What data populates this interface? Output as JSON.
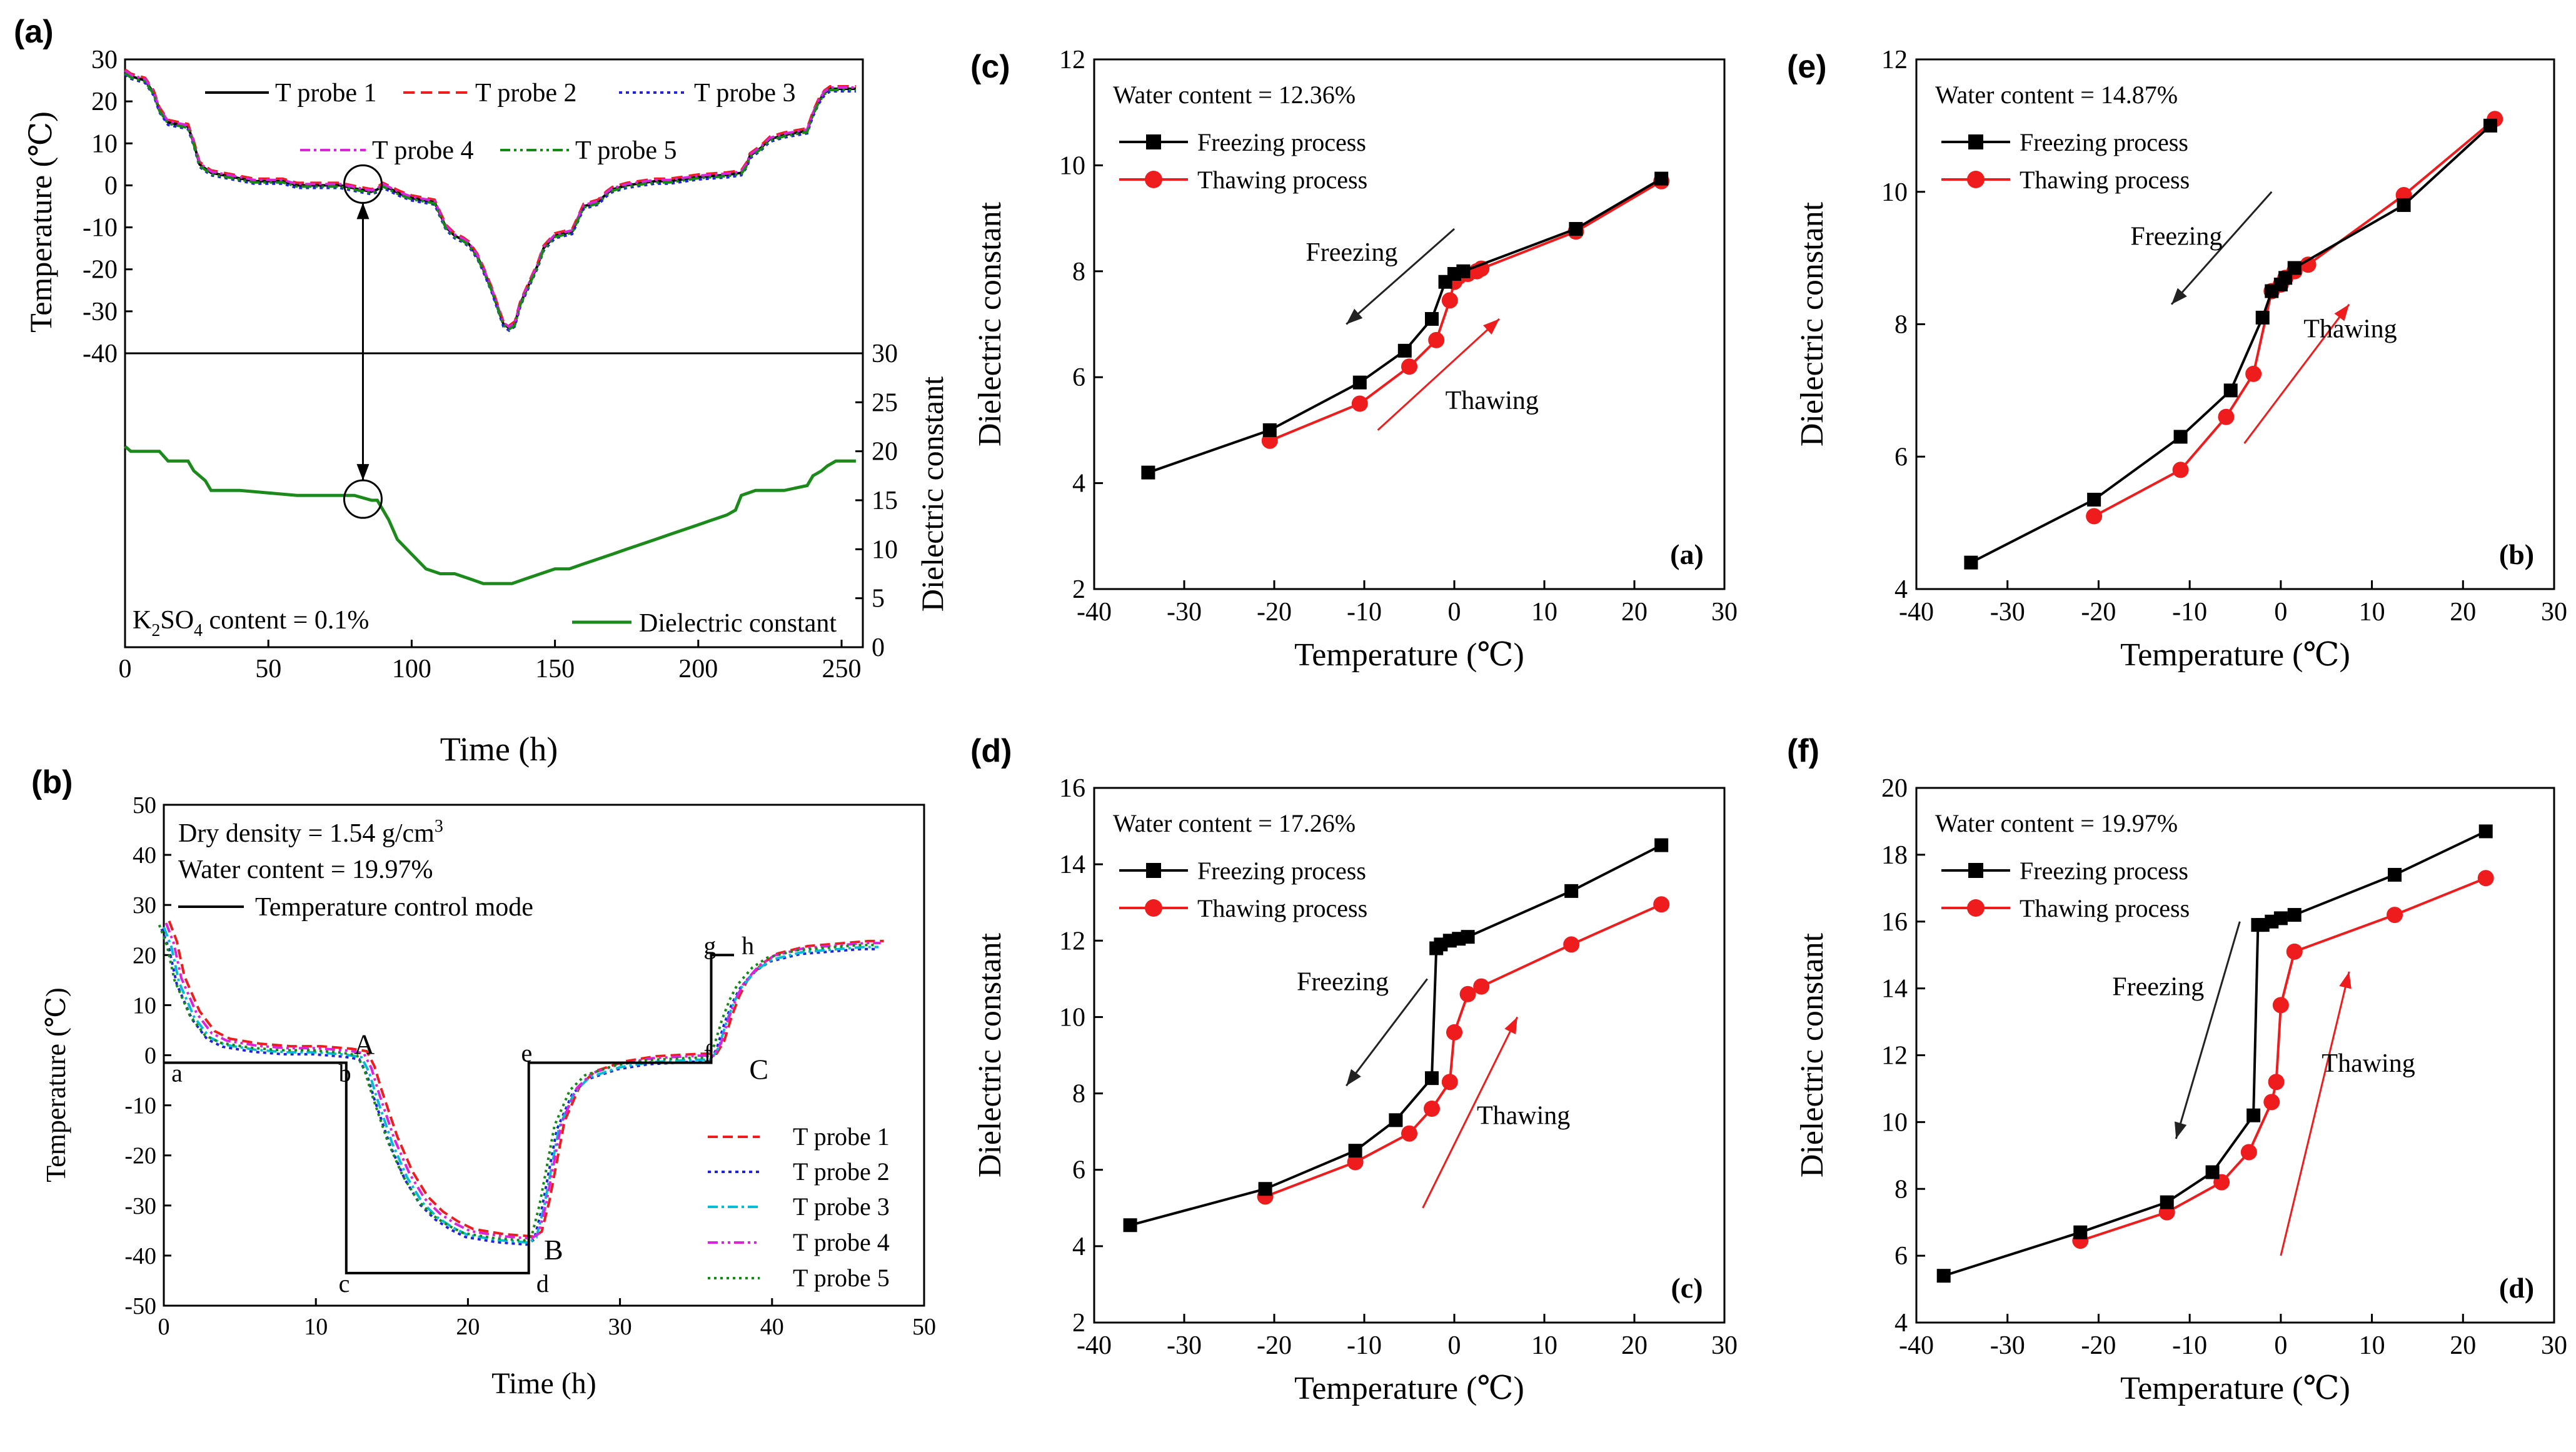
{
  "figure": {
    "panel_letters": [
      "(a)",
      "(b)",
      "(c)",
      "(e)",
      "(d)",
      "(f)"
    ]
  },
  "colors": {
    "freezing": "#000000",
    "thawing": "#ee1c1c",
    "probe1": "#000000",
    "probe2": "#ee1c1c",
    "probe3": "#2222dd",
    "probe4": "#dd22dd",
    "probe5": "#138a13",
    "dielectric": "#1b8a1b",
    "probe3_b": "#00bcd4"
  },
  "chart_data": [
    {
      "id": "a",
      "type": "line",
      "label": "(a)",
      "xlabel": "Time (h)",
      "ylabel_top": "Temperature (℃)",
      "ylabel_bottom": "Dielectric constant",
      "xlim": [
        0,
        250
      ],
      "xticks": [
        "0",
        "50",
        "100",
        "150",
        "200",
        "250"
      ],
      "ylim_top": [
        -40,
        30
      ],
      "yticks_top": [
        "-40",
        "-30",
        "-20",
        "-10",
        "0",
        "10",
        "20",
        "30"
      ],
      "ylim_bottom": [
        0,
        30
      ],
      "yticks_bottom": [
        "0",
        "5",
        "10",
        "15",
        "20",
        "25",
        "30"
      ],
      "legend": [
        "T probe 1",
        "T probe 2",
        "T probe 3",
        "T probe 4",
        "T probe 5"
      ],
      "dielectric_legend": "Dielectric constant",
      "annotation_prefix": "K",
      "annotation_sub": "2",
      "annotation_mid": "SO",
      "annotation_sub2": "4",
      "annotation_suffix": " content = 0.1%",
      "temperature_series": {
        "x": [
          0,
          2,
          7,
          10,
          12,
          15,
          22,
          24,
          26,
          30,
          45,
          55,
          60,
          75,
          82,
          86,
          88,
          90,
          93,
          96,
          98,
          100,
          108,
          110,
          112,
          115,
          118,
          120,
          123,
          125,
          128,
          130,
          132,
          134,
          136,
          138,
          142,
          144,
          146,
          150,
          156,
          158,
          160,
          165,
          168,
          170,
          175,
          185,
          190,
          200,
          210,
          215,
          217,
          218,
          222,
          225,
          230,
          238,
          240,
          242,
          244,
          246,
          250,
          255
        ],
        "y": [
          27,
          26,
          25,
          22,
          18,
          15,
          14,
          10,
          5,
          3,
          1,
          1,
          0,
          0,
          -1,
          -1.5,
          -1,
          0,
          -1,
          -2,
          -2.5,
          -3,
          -4,
          -7,
          -10,
          -12,
          -13,
          -14,
          -17,
          -20,
          -25,
          -29,
          -33,
          -34,
          -33,
          -28,
          -22,
          -19,
          -15,
          -12,
          -11,
          -8,
          -5,
          -4,
          -2,
          -1,
          0,
          1,
          1,
          2,
          2.5,
          3,
          5,
          7,
          9,
          11,
          12,
          13,
          17,
          20,
          22,
          23,
          23,
          23
        ]
      },
      "dielectric_series": {
        "x": [
          0,
          2,
          12,
          15,
          22,
          24,
          28,
          30,
          40,
          60,
          80,
          86,
          88,
          90,
          92,
          95,
          100,
          105,
          110,
          115,
          120,
          125,
          130,
          135,
          140,
          145,
          150,
          155,
          160,
          165,
          170,
          175,
          180,
          185,
          190,
          195,
          200,
          205,
          210,
          213,
          215,
          220,
          225,
          230,
          238,
          240,
          243,
          245,
          248,
          250,
          255
        ],
        "y": [
          20.5,
          20,
          20,
          19,
          19,
          18,
          17,
          16,
          16,
          15.5,
          15.5,
          15,
          15,
          14,
          13,
          11,
          9.5,
          8,
          7.5,
          7.5,
          7,
          6.5,
          6.5,
          6.5,
          7,
          7.5,
          8,
          8,
          8.5,
          9,
          9.5,
          10,
          10.5,
          11,
          11.5,
          12,
          12.5,
          13,
          13.5,
          14,
          15.5,
          16,
          16,
          16,
          16.5,
          17.5,
          18,
          18.5,
          19,
          19,
          19
        ]
      },
      "link": {
        "from_time": 83,
        "from_temp": 0,
        "to_dielectric": 15.5
      }
    },
    {
      "id": "b",
      "type": "line",
      "label": "(b)",
      "xlabel": "Time (h)",
      "ylabel": "Temperature (℃)",
      "xlim": [
        0,
        50
      ],
      "xticks": [
        "0",
        "10",
        "20",
        "30",
        "40",
        "50"
      ],
      "ylim": [
        -50,
        50
      ],
      "yticks": [
        "-50",
        "-40",
        "-30",
        "-20",
        "-10",
        "0",
        "10",
        "20",
        "30",
        "40",
        "50"
      ],
      "info_prefix": "Dry density = 1.54 g/cm",
      "info_sup": "3",
      "info_line2": "Water content = 19.97%",
      "control_label": "Temperature control mode",
      "legend": [
        "T probe 1",
        "T probe 2",
        "T probe 3",
        "T probe 4",
        "T probe 5"
      ],
      "control_mode": {
        "x": [
          0,
          12,
          12,
          24,
          24,
          36,
          36,
          37.5
        ],
        "y": [
          -1.5,
          -1.5,
          -43.5,
          -43.5,
          -1.5,
          -1.5,
          20,
          20
        ]
      },
      "point_labels": [
        {
          "text": "a",
          "x": 0.5,
          "y": -3.5
        },
        {
          "text": "b",
          "x": 11.5,
          "y": -3.5
        },
        {
          "text": "c",
          "x": 11.5,
          "y": -45.5
        },
        {
          "text": "d",
          "x": 24.5,
          "y": -45.5
        },
        {
          "text": "e",
          "x": 23.5,
          "y": 0.5
        },
        {
          "text": "f",
          "x": 35.5,
          "y": 0.5
        },
        {
          "text": "g",
          "x": 35.5,
          "y": 22
        },
        {
          "text": "h",
          "x": 38,
          "y": 22
        },
        {
          "text": "A",
          "x": 12.5,
          "y": 2
        },
        {
          "text": "B",
          "x": 25,
          "y": -39
        },
        {
          "text": "C",
          "x": 38.5,
          "y": -3
        }
      ],
      "probe_series": {
        "x": [
          0,
          0.5,
          1,
          2,
          3,
          4,
          6,
          8,
          10,
          12,
          13,
          13.5,
          14,
          15,
          16,
          17,
          18,
          19,
          20,
          22,
          24,
          24.5,
          25,
          25.5,
          26,
          27,
          28,
          30,
          32,
          35,
          36,
          36.5,
          37,
          37.5,
          38,
          39,
          40,
          42,
          44,
          46,
          47
        ],
        "y": [
          26,
          22,
          15,
          8,
          4,
          2.5,
          1.5,
          1,
          1,
          0.5,
          0,
          -3,
          -8,
          -17,
          -24,
          -29,
          -32,
          -34,
          -35.5,
          -36.5,
          -37,
          -36,
          -30,
          -22,
          -14,
          -7,
          -4,
          -2,
          -1,
          -0.5,
          -0.5,
          2,
          7,
          11,
          14,
          17.5,
          19.5,
          21,
          21.5,
          22,
          22
        ]
      }
    },
    {
      "id": "c",
      "type": "line",
      "label": "(c)",
      "inner_label": "(a)",
      "xlabel": "Temperature (℃)",
      "ylabel": "Dielectric constant",
      "xlim": [
        -40,
        30
      ],
      "xticks": [
        "-40",
        "-30",
        "-20",
        "-10",
        "0",
        "10",
        "20",
        "30"
      ],
      "ylim": [
        2,
        12
      ],
      "yticks": [
        "2",
        "4",
        "6",
        "8",
        "10",
        "12"
      ],
      "water_content": "Water content = 12.36%",
      "series": [
        {
          "name": "Freezing process",
          "x": [
            23,
            13.5,
            1,
            0,
            -1,
            -2.5,
            -5.5,
            -10.5,
            -20.5,
            -34
          ],
          "y": [
            9.75,
            8.8,
            8,
            7.95,
            7.8,
            7.1,
            6.5,
            5.9,
            5.0,
            4.2
          ]
        },
        {
          "name": "Thawing process",
          "x": [
            -20.5,
            -10.5,
            -5,
            -2,
            -0.5,
            0,
            0.5,
            1.5,
            2.5,
            3,
            13.5,
            23
          ],
          "y": [
            4.8,
            5.5,
            6.2,
            6.7,
            7.45,
            7.8,
            7.9,
            7.95,
            8.0,
            8.05,
            8.75,
            9.7
          ]
        }
      ],
      "arrows": [
        {
          "label": "Freezing",
          "x1": 0,
          "y1": 8.8,
          "x2": -12,
          "y2": 7.0,
          "label_x": -16.5,
          "label_y": 8.2
        },
        {
          "label": "Thawing",
          "x1": -8.5,
          "y1": 5.0,
          "x2": 5,
          "y2": 7.1,
          "label_x": -1,
          "label_y": 5.4
        }
      ]
    },
    {
      "id": "e",
      "type": "line",
      "label": "(e)",
      "inner_label": "(b)",
      "xlabel": "Temperature (℃)",
      "ylabel": "Dielectric constant",
      "xlim": [
        -40,
        30
      ],
      "xticks": [
        "-40",
        "-30",
        "-20",
        "-10",
        "0",
        "10",
        "20",
        "30"
      ],
      "ylim": [
        4,
        12
      ],
      "yticks": [
        "4",
        "6",
        "8",
        "10",
        "12"
      ],
      "water_content": "Water content = 14.87%",
      "series": [
        {
          "name": "Freezing process",
          "x": [
            23,
            13.5,
            1.5,
            0.5,
            0,
            -1,
            -2,
            -5.5,
            -11,
            -20.5,
            -34
          ],
          "y": [
            11.0,
            9.8,
            8.85,
            8.7,
            8.6,
            8.5,
            8.1,
            7.0,
            6.3,
            5.35,
            4.4
          ]
        },
        {
          "name": "Thawing process",
          "x": [
            -20.5,
            -11,
            -6,
            -3,
            -1,
            0,
            0.5,
            1.5,
            3,
            13.5,
            23.5
          ],
          "y": [
            5.1,
            5.8,
            6.6,
            7.25,
            8.5,
            8.6,
            8.7,
            8.8,
            8.9,
            9.95,
            11.1
          ]
        }
      ],
      "arrows": [
        {
          "label": "Freezing",
          "x1": -1,
          "y1": 10.0,
          "x2": -12,
          "y2": 8.3,
          "label_x": -16.5,
          "label_y": 9.2
        },
        {
          "label": "Thawing",
          "x1": -4,
          "y1": 6.2,
          "x2": 7.5,
          "y2": 8.3,
          "label_x": 2.5,
          "label_y": 7.8
        }
      ]
    },
    {
      "id": "d",
      "type": "line",
      "label": "(d)",
      "inner_label": "(c)",
      "xlabel": "Temperature (℃)",
      "ylabel": "Dielectric constant",
      "xlim": [
        -40,
        30
      ],
      "xticks": [
        "-40",
        "-30",
        "-20",
        "-10",
        "0",
        "10",
        "20",
        "30"
      ],
      "ylim": [
        2,
        16
      ],
      "yticks": [
        "2",
        "4",
        "6",
        "8",
        "10",
        "12",
        "14",
        "16"
      ],
      "water_content": "Water content = 17.26%",
      "series": [
        {
          "name": "Freezing process",
          "x": [
            23,
            13,
            1.5,
            0.5,
            -0.5,
            -1.5,
            -2,
            -2.5,
            -6.5,
            -11,
            -21,
            -36
          ],
          "y": [
            14.5,
            13.3,
            12.1,
            12.05,
            12.0,
            11.9,
            11.8,
            8.4,
            7.3,
            6.5,
            5.5,
            4.55
          ]
        },
        {
          "name": "Thawing process",
          "x": [
            -21,
            -11,
            -5,
            -2.5,
            -0.5,
            0,
            1.5,
            3,
            13,
            23
          ],
          "y": [
            5.3,
            6.2,
            6.95,
            7.6,
            8.3,
            9.6,
            10.6,
            10.8,
            11.9,
            12.95
          ]
        }
      ],
      "arrows": [
        {
          "label": "Freezing",
          "x1": -3,
          "y1": 11.0,
          "x2": -12,
          "y2": 8.2,
          "label_x": -17.5,
          "label_y": 10.7
        },
        {
          "label": "Thawing",
          "x1": -3.5,
          "y1": 5.0,
          "x2": 7,
          "y2": 10.0,
          "label_x": 2.5,
          "label_y": 7.2
        }
      ]
    },
    {
      "id": "f",
      "type": "line",
      "label": "(f)",
      "inner_label": "(d)",
      "xlabel": "Temperature (℃)",
      "ylabel": "Dielectric constant",
      "xlim": [
        -40,
        30
      ],
      "xticks": [
        "-40",
        "-30",
        "-20",
        "-10",
        "0",
        "10",
        "20",
        "30"
      ],
      "ylim": [
        4,
        20
      ],
      "yticks": [
        "4",
        "6",
        "8",
        "10",
        "12",
        "14",
        "16",
        "18",
        "20"
      ],
      "water_content": "Water content = 19.97%",
      "series": [
        {
          "name": "Freezing process",
          "x": [
            22.5,
            12.5,
            1.5,
            0,
            -1,
            -2,
            -2.5,
            -3,
            -7.5,
            -12.5,
            -22,
            -37
          ],
          "y": [
            18.7,
            17.4,
            16.2,
            16.1,
            16.0,
            15.9,
            15.9,
            10.2,
            8.5,
            7.6,
            6.7,
            5.4
          ]
        },
        {
          "name": "Thawing process",
          "x": [
            -22,
            -12.5,
            -6.5,
            -3.5,
            -1,
            -0.5,
            0,
            1.5,
            12.5,
            22.5
          ],
          "y": [
            6.45,
            7.3,
            8.2,
            9.1,
            10.6,
            11.2,
            13.5,
            15.1,
            16.2,
            17.3
          ]
        }
      ],
      "arrows": [
        {
          "label": "Freezing",
          "x1": -4.5,
          "y1": 16.0,
          "x2": -11.5,
          "y2": 9.5,
          "label_x": -18.5,
          "label_y": 13.8
        },
        {
          "label": "Thawing",
          "x1": 0,
          "y1": 6.0,
          "x2": 7.5,
          "y2": 14.5,
          "label_x": 4.5,
          "label_y": 11.5
        }
      ]
    }
  ]
}
